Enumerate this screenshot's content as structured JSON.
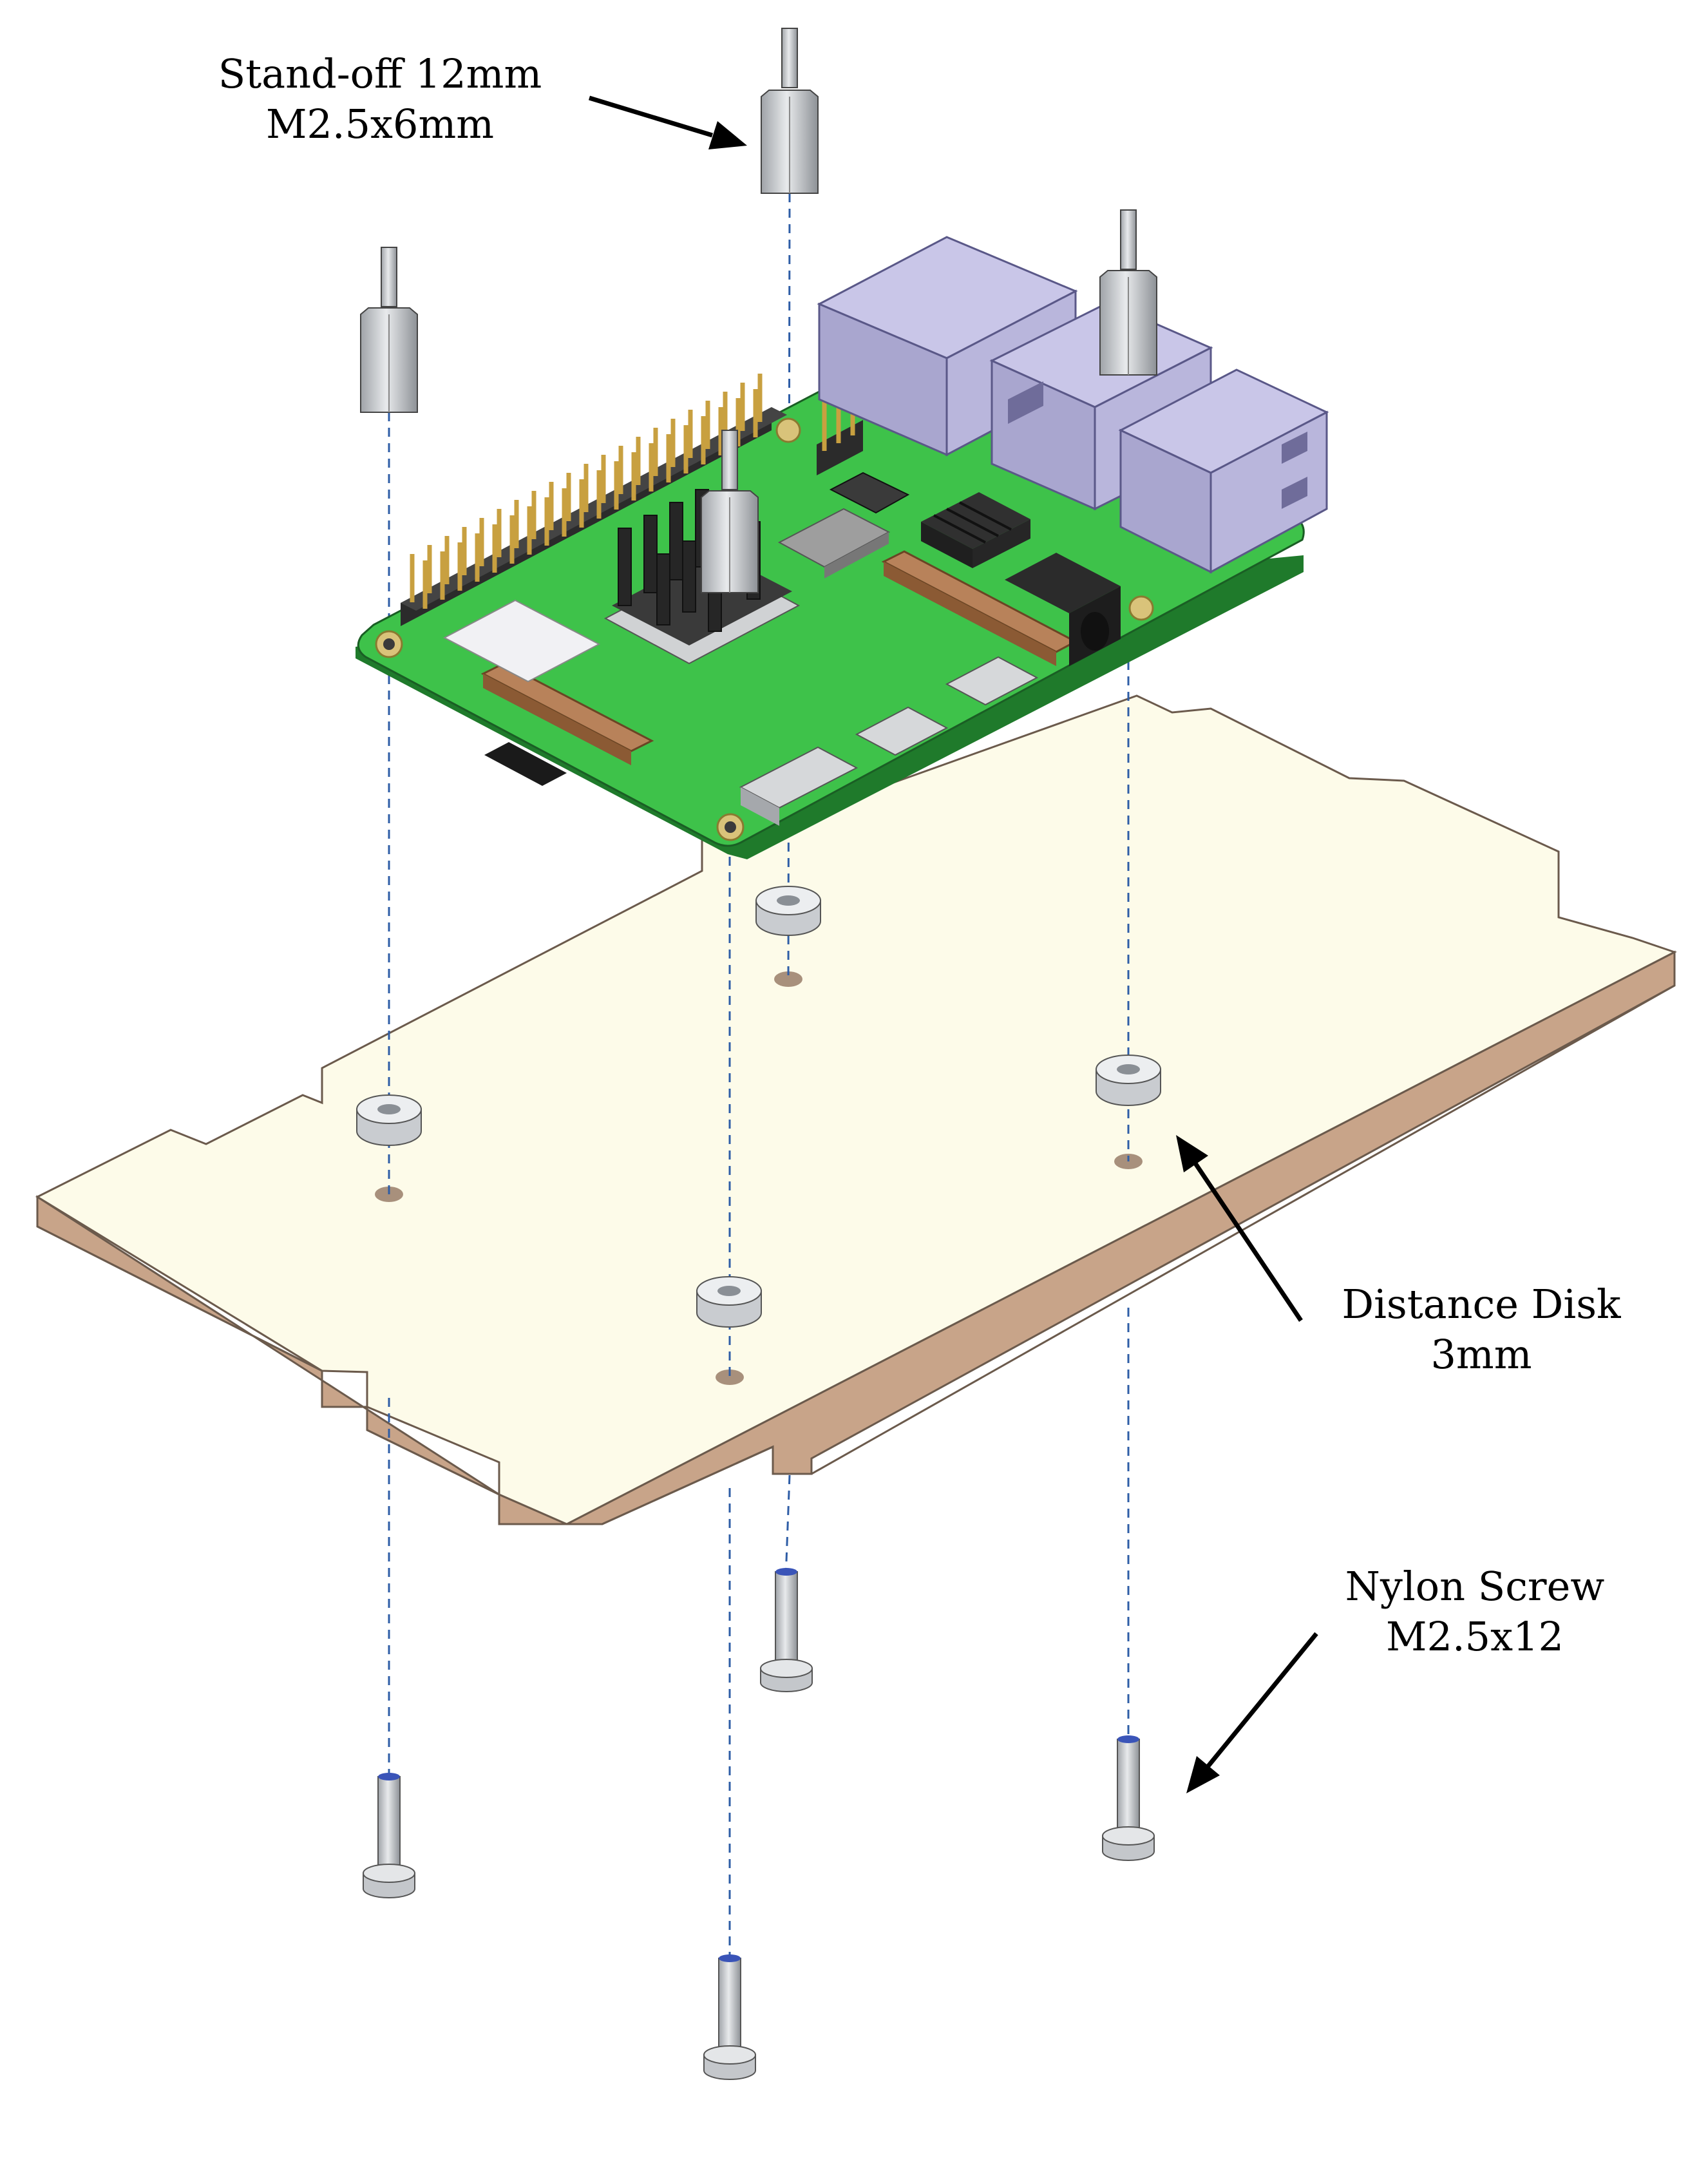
{
  "callouts": {
    "standoff": {
      "line1": "Stand-off 12mm",
      "line2": "M2.5x6mm"
    },
    "disk": {
      "line1": "Distance Disk",
      "line2": "3mm"
    },
    "screw": {
      "line1": "Nylon Screw",
      "line2": "M2.5x12"
    }
  },
  "colors": {
    "pcb": "#3ec24a",
    "pcb_dark": "#1f7a2b",
    "plate_top": "#fdfbe9",
    "plate_side": "#c8a489",
    "metal": "#cfd2d6",
    "port": "#b9b6dc",
    "axis_line": "#2e5da6",
    "header_pin": "#c8a040"
  }
}
